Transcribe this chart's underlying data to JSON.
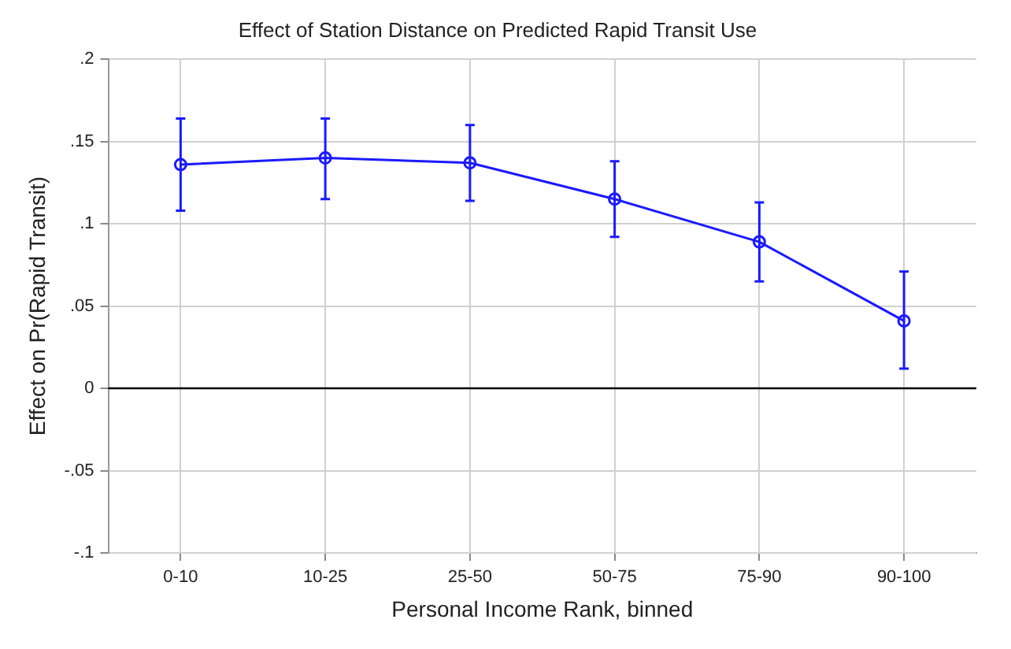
{
  "chart_data": {
    "type": "line",
    "title": "Effect of Station Distance on Predicted Rapid Transit Use",
    "xlabel": "Personal Income Rank, binned",
    "ylabel": "Effect on Pr(Rapid Transit)",
    "categories": [
      "0-10",
      "10-25",
      "25-50",
      "50-75",
      "75-90",
      "90-100"
    ],
    "series": [
      {
        "color": "#1a1aff",
        "values": [
          0.136,
          0.14,
          0.137,
          0.115,
          0.089,
          0.041
        ],
        "errors": [
          [
            0.108,
            0.164
          ],
          [
            0.115,
            0.164
          ],
          [
            0.114,
            0.16
          ],
          [
            0.092,
            0.138
          ],
          [
            0.065,
            0.113
          ],
          [
            0.012,
            0.071
          ]
        ]
      }
    ],
    "ylim": [
      -0.1,
      0.2
    ],
    "yticks": [
      {
        "value": -0.1,
        "label": "-.1"
      },
      {
        "value": -0.05,
        "label": "-.05"
      },
      0,
      {
        "value": 0.05,
        "label": ".05"
      },
      {
        "value": 0.1,
        "label": ".1"
      },
      {
        "value": 0.15,
        "label": ".15"
      },
      {
        "value": 0.2,
        "label": ".2"
      }
    ],
    "ref_lines": [
      {
        "axis": "y",
        "value": 0,
        "color": "#000000"
      }
    ],
    "grid": true,
    "legend": false,
    "marker": "circle",
    "line_style": "solid"
  }
}
